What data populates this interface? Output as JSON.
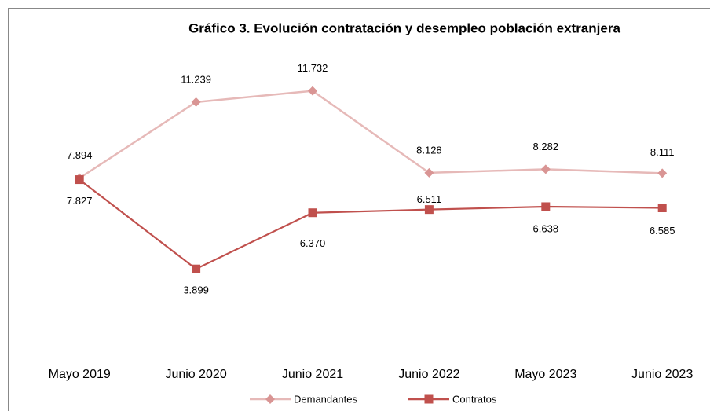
{
  "chart_data": {
    "type": "line",
    "title": "Gráfico 3. Evolución contratación y desempleo población extranjera",
    "categories": [
      "Mayo 2019",
      "Junio 2020",
      "Junio 2021",
      "Junio 2022",
      "Mayo 2023",
      "Junio 2023"
    ],
    "series": [
      {
        "name": "Demandantes",
        "color": "#e6b9b8",
        "marker": "diamond",
        "values": [
          7894,
          11239,
          11732,
          8128,
          8282,
          8111
        ],
        "value_labels": [
          "7.894",
          "11.239",
          "11.732",
          "8.128",
          "8.282",
          "8.111"
        ]
      },
      {
        "name": "Contratos",
        "color": "#c0504d",
        "marker": "square",
        "values": [
          7827,
          3899,
          6370,
          6511,
          6638,
          6585
        ],
        "value_labels": [
          "7.827",
          "3.899",
          "6.370",
          "6.511",
          "6.638",
          "6.585"
        ]
      }
    ],
    "ylim": [
      0,
      14000
    ],
    "legend": "bottom"
  }
}
